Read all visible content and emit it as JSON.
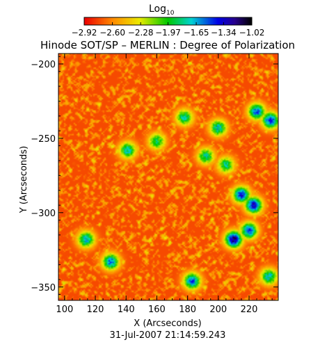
{
  "chart_data": {
    "type": "heatmap",
    "title": "Hinode SOT/SP – MERLIN : Degree of Polarization",
    "subtitle": "31-Jul-2007 21:14:59.243",
    "xlabel": "X (Arcseconds)",
    "ylabel": "Y (Arcseconds)",
    "xlim": [
      96,
      239
    ],
    "ylim": [
      -359,
      -193
    ],
    "x_ticks": [
      100,
      120,
      140,
      160,
      180,
      200,
      220
    ],
    "y_ticks": [
      -200,
      -250,
      -300,
      -350
    ],
    "x_tick_labels": [
      "100",
      "120",
      "140",
      "160",
      "180",
      "200",
      "220"
    ],
    "y_tick_labels": [
      "−200",
      "−250",
      "−300",
      "−350"
    ],
    "colorbar": {
      "title_base": "Log",
      "title_sub": "10",
      "range": [
        -2.92,
        -1.02
      ],
      "ticks": [
        -2.92,
        -2.6,
        -2.28,
        -1.97,
        -1.65,
        -1.34,
        -1.02
      ],
      "tick_labels": [
        "−2.92",
        "−2.60",
        "−2.28",
        "−1.97",
        "−1.65",
        "−1.34",
        "−1.02"
      ],
      "colormap": "rainbow"
    },
    "background_level": -2.75,
    "strong_regions": [
      {
        "x": 225,
        "y": -232,
        "peak": -1.5
      },
      {
        "x": 234,
        "y": -238,
        "peak": -1.4
      },
      {
        "x": 215,
        "y": -288,
        "peak": -1.4
      },
      {
        "x": 223,
        "y": -295,
        "peak": -1.3
      },
      {
        "x": 210,
        "y": -318,
        "peak": -1.15
      },
      {
        "x": 220,
        "y": -312,
        "peak": -1.45
      },
      {
        "x": 183,
        "y": -346,
        "peak": -1.5
      },
      {
        "x": 130,
        "y": -333,
        "peak": -1.55
      },
      {
        "x": 114,
        "y": -318,
        "peak": -1.65
      },
      {
        "x": 141,
        "y": -258,
        "peak": -1.7
      },
      {
        "x": 178,
        "y": -236,
        "peak": -1.75
      },
      {
        "x": 200,
        "y": -243,
        "peak": -1.7
      },
      {
        "x": 233,
        "y": -343,
        "peak": -1.7
      },
      {
        "x": 205,
        "y": -268,
        "peak": -1.8
      },
      {
        "x": 160,
        "y": -252,
        "peak": -1.85
      },
      {
        "x": 192,
        "y": -262,
        "peak": -1.8
      }
    ]
  }
}
